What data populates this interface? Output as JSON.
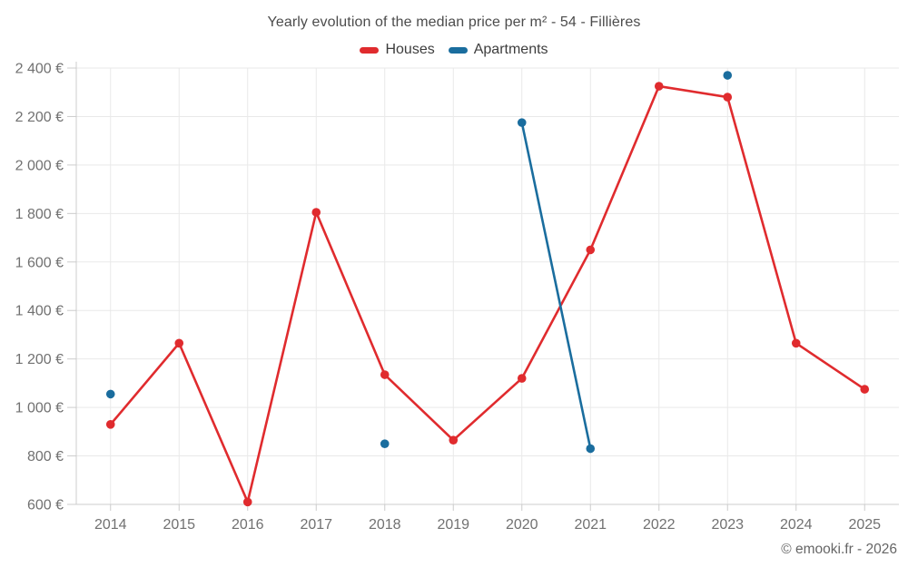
{
  "chart_data": {
    "type": "line",
    "title": "Yearly evolution of the median price per m² - 54 - Fillières",
    "x": [
      "2014",
      "2015",
      "2016",
      "2017",
      "2018",
      "2019",
      "2020",
      "2021",
      "2022",
      "2023",
      "2024",
      "2025"
    ],
    "series": [
      {
        "name": "Houses",
        "color": "#e02b2e",
        "values": [
          930,
          1265,
          610,
          1805,
          1135,
          865,
          1120,
          1650,
          2325,
          2280,
          1265,
          1075
        ]
      },
      {
        "name": "Apartments",
        "color": "#1a6d9e",
        "values": [
          1055,
          null,
          null,
          null,
          850,
          null,
          2175,
          830,
          null,
          2370,
          null,
          null
        ]
      }
    ],
    "ylim": [
      600,
      2400
    ],
    "yticks": [
      {
        "v": 600,
        "label": "600 €"
      },
      {
        "v": 800,
        "label": "800 €"
      },
      {
        "v": 1000,
        "label": "1 000 €"
      },
      {
        "v": 1200,
        "label": "1 200 €"
      },
      {
        "v": 1400,
        "label": "1 400 €"
      },
      {
        "v": 1600,
        "label": "1 600 €"
      },
      {
        "v": 1800,
        "label": "1 800 €"
      },
      {
        "v": 2000,
        "label": "2 000 €"
      },
      {
        "v": 2200,
        "label": "2 200 €"
      },
      {
        "v": 2400,
        "label": "2 400 €"
      }
    ],
    "grid": true,
    "legend_position": "top",
    "xlabel": "",
    "ylabel": ""
  },
  "footer": "© emooki.fr - 2026"
}
